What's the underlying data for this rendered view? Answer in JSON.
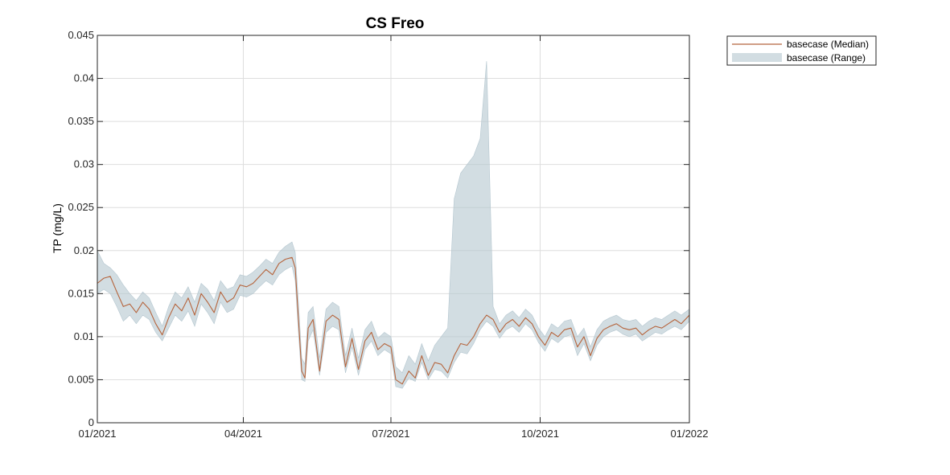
{
  "chart_data": {
    "type": "line",
    "title": "CS Freo",
    "xlabel": "",
    "ylabel": "TP (mg/L)",
    "xlim": [
      "2021-01-01",
      "2022-01-01"
    ],
    "ylim": [
      0,
      0.045
    ],
    "grid": true,
    "legend_position": "outside-top-right",
    "x_ticks": [
      {
        "date": "2021-01-01",
        "label": "01/2021"
      },
      {
        "date": "2021-04-01",
        "label": "04/2021"
      },
      {
        "date": "2021-07-01",
        "label": "07/2021"
      },
      {
        "date": "2021-10-01",
        "label": "10/2021"
      },
      {
        "date": "2022-01-01",
        "label": "01/2022"
      }
    ],
    "y_ticks": [
      {
        "value": 0,
        "label": "0"
      },
      {
        "value": 0.005,
        "label": "0.005"
      },
      {
        "value": 0.01,
        "label": "0.01"
      },
      {
        "value": 0.015,
        "label": "0.015"
      },
      {
        "value": 0.02,
        "label": "0.02"
      },
      {
        "value": 0.025,
        "label": "0.025"
      },
      {
        "value": 0.03,
        "label": "0.03"
      },
      {
        "value": 0.035,
        "label": "0.035"
      },
      {
        "value": 0.04,
        "label": "0.04"
      },
      {
        "value": 0.045,
        "label": "0.045"
      }
    ],
    "series": [
      {
        "name": "basecase (Median)",
        "kind": "line",
        "color": "#b5643c",
        "x": [
          "2021-01-01",
          "2021-01-05",
          "2021-01-09",
          "2021-01-13",
          "2021-01-17",
          "2021-01-21",
          "2021-01-25",
          "2021-01-29",
          "2021-02-02",
          "2021-02-06",
          "2021-02-10",
          "2021-02-14",
          "2021-02-18",
          "2021-02-22",
          "2021-02-26",
          "2021-03-02",
          "2021-03-06",
          "2021-03-10",
          "2021-03-14",
          "2021-03-18",
          "2021-03-22",
          "2021-03-26",
          "2021-03-30",
          "2021-04-03",
          "2021-04-07",
          "2021-04-11",
          "2021-04-15",
          "2021-04-19",
          "2021-04-23",
          "2021-04-27",
          "2021-05-01",
          "2021-05-03",
          "2021-05-05",
          "2021-05-07",
          "2021-05-09",
          "2021-05-11",
          "2021-05-14",
          "2021-05-18",
          "2021-05-22",
          "2021-05-26",
          "2021-05-30",
          "2021-06-03",
          "2021-06-07",
          "2021-06-11",
          "2021-06-15",
          "2021-06-19",
          "2021-06-23",
          "2021-06-27",
          "2021-07-01",
          "2021-07-04",
          "2021-07-08",
          "2021-07-12",
          "2021-07-16",
          "2021-07-20",
          "2021-07-24",
          "2021-07-28",
          "2021-08-01",
          "2021-08-05",
          "2021-08-09",
          "2021-08-13",
          "2021-08-17",
          "2021-08-21",
          "2021-08-25",
          "2021-08-29",
          "2021-09-02",
          "2021-09-06",
          "2021-09-10",
          "2021-09-14",
          "2021-09-18",
          "2021-09-22",
          "2021-09-26",
          "2021-09-30",
          "2021-10-04",
          "2021-10-08",
          "2021-10-12",
          "2021-10-16",
          "2021-10-20",
          "2021-10-24",
          "2021-10-28",
          "2021-11-01",
          "2021-11-05",
          "2021-11-09",
          "2021-11-13",
          "2021-11-17",
          "2021-11-21",
          "2021-11-25",
          "2021-11-29",
          "2021-12-03",
          "2021-12-07",
          "2021-12-11",
          "2021-12-15",
          "2021-12-19",
          "2021-12-23",
          "2021-12-27",
          "2022-01-01"
        ],
        "values": [
          0.0162,
          0.0168,
          0.017,
          0.0152,
          0.0135,
          0.0138,
          0.0128,
          0.014,
          0.0132,
          0.0115,
          0.0102,
          0.0122,
          0.0138,
          0.013,
          0.0145,
          0.0125,
          0.015,
          0.014,
          0.0128,
          0.0152,
          0.014,
          0.0145,
          0.016,
          0.0158,
          0.0162,
          0.017,
          0.0178,
          0.0172,
          0.0185,
          0.019,
          0.0192,
          0.018,
          0.012,
          0.006,
          0.0052,
          0.011,
          0.012,
          0.006,
          0.0118,
          0.0125,
          0.012,
          0.0065,
          0.0098,
          0.0062,
          0.0095,
          0.0105,
          0.0085,
          0.0092,
          0.0088,
          0.005,
          0.0045,
          0.006,
          0.0052,
          0.0078,
          0.0055,
          0.007,
          0.0068,
          0.0058,
          0.0078,
          0.0092,
          0.009,
          0.01,
          0.0115,
          0.0125,
          0.012,
          0.0105,
          0.0115,
          0.012,
          0.0112,
          0.0122,
          0.0115,
          0.01,
          0.009,
          0.0105,
          0.01,
          0.0108,
          0.011,
          0.0088,
          0.01,
          0.0078,
          0.0098,
          0.0108,
          0.0112,
          0.0115,
          0.011,
          0.0108,
          0.011,
          0.0102,
          0.0108,
          0.0112,
          0.011,
          0.0115,
          0.012,
          0.0115,
          0.0125
        ]
      },
      {
        "name": "basecase (Range)",
        "kind": "band",
        "color": "#b4c6cf",
        "x": [
          "2021-01-01",
          "2021-01-05",
          "2021-01-09",
          "2021-01-13",
          "2021-01-17",
          "2021-01-21",
          "2021-01-25",
          "2021-01-29",
          "2021-02-02",
          "2021-02-06",
          "2021-02-10",
          "2021-02-14",
          "2021-02-18",
          "2021-02-22",
          "2021-02-26",
          "2021-03-02",
          "2021-03-06",
          "2021-03-10",
          "2021-03-14",
          "2021-03-18",
          "2021-03-22",
          "2021-03-26",
          "2021-03-30",
          "2021-04-03",
          "2021-04-07",
          "2021-04-11",
          "2021-04-15",
          "2021-04-19",
          "2021-04-23",
          "2021-04-27",
          "2021-05-01",
          "2021-05-03",
          "2021-05-05",
          "2021-05-07",
          "2021-05-09",
          "2021-05-11",
          "2021-05-14",
          "2021-05-18",
          "2021-05-22",
          "2021-05-26",
          "2021-05-30",
          "2021-06-03",
          "2021-06-07",
          "2021-06-11",
          "2021-06-15",
          "2021-06-19",
          "2021-06-23",
          "2021-06-27",
          "2021-07-01",
          "2021-07-04",
          "2021-07-08",
          "2021-07-12",
          "2021-07-16",
          "2021-07-20",
          "2021-07-24",
          "2021-07-28",
          "2021-08-01",
          "2021-08-05",
          "2021-08-09",
          "2021-08-13",
          "2021-08-17",
          "2021-08-21",
          "2021-08-25",
          "2021-08-29",
          "2021-09-02",
          "2021-09-06",
          "2021-09-10",
          "2021-09-14",
          "2021-09-18",
          "2021-09-22",
          "2021-09-26",
          "2021-09-30",
          "2021-10-04",
          "2021-10-08",
          "2021-10-12",
          "2021-10-16",
          "2021-10-20",
          "2021-10-24",
          "2021-10-28",
          "2021-11-01",
          "2021-11-05",
          "2021-11-09",
          "2021-11-13",
          "2021-11-17",
          "2021-11-21",
          "2021-11-25",
          "2021-11-29",
          "2021-12-03",
          "2021-12-07",
          "2021-12-11",
          "2021-12-15",
          "2021-12-19",
          "2021-12-23",
          "2021-12-27",
          "2022-01-01"
        ],
        "lower": [
          0.015,
          0.0155,
          0.015,
          0.0135,
          0.0118,
          0.0125,
          0.0115,
          0.0125,
          0.012,
          0.0105,
          0.0095,
          0.011,
          0.0125,
          0.0118,
          0.013,
          0.0112,
          0.0138,
          0.0128,
          0.0115,
          0.014,
          0.0128,
          0.0132,
          0.0148,
          0.0146,
          0.015,
          0.0158,
          0.0165,
          0.016,
          0.0172,
          0.0178,
          0.0182,
          0.0165,
          0.0105,
          0.005,
          0.0048,
          0.0095,
          0.0108,
          0.0055,
          0.0105,
          0.0112,
          0.0108,
          0.0058,
          0.0088,
          0.0055,
          0.0085,
          0.0095,
          0.0078,
          0.0085,
          0.008,
          0.0042,
          0.004,
          0.0052,
          0.0048,
          0.007,
          0.005,
          0.0062,
          0.006,
          0.0052,
          0.007,
          0.0082,
          0.008,
          0.0092,
          0.0108,
          0.0118,
          0.0112,
          0.0098,
          0.0108,
          0.0112,
          0.0105,
          0.0115,
          0.0108,
          0.0093,
          0.0083,
          0.0098,
          0.0093,
          0.01,
          0.0102,
          0.0078,
          0.0092,
          0.0072,
          0.009,
          0.01,
          0.0105,
          0.0108,
          0.0103,
          0.01,
          0.0103,
          0.0095,
          0.01,
          0.0105,
          0.0103,
          0.0108,
          0.0112,
          0.0108,
          0.0118
        ],
        "upper": [
          0.02,
          0.0185,
          0.018,
          0.0172,
          0.016,
          0.015,
          0.0142,
          0.0152,
          0.0145,
          0.0128,
          0.0112,
          0.0135,
          0.0152,
          0.0145,
          0.0158,
          0.014,
          0.0162,
          0.0155,
          0.0142,
          0.0165,
          0.0155,
          0.0158,
          0.0172,
          0.017,
          0.0175,
          0.0182,
          0.019,
          0.0185,
          0.0198,
          0.0205,
          0.021,
          0.0198,
          0.014,
          0.0075,
          0.0068,
          0.0128,
          0.0135,
          0.0075,
          0.0132,
          0.014,
          0.0135,
          0.0078,
          0.011,
          0.0075,
          0.0108,
          0.0118,
          0.0098,
          0.0105,
          0.01,
          0.0065,
          0.0058,
          0.0078,
          0.0068,
          0.0092,
          0.0072,
          0.009,
          0.01,
          0.011,
          0.026,
          0.029,
          0.03,
          0.031,
          0.033,
          0.042,
          0.0135,
          0.0115,
          0.0125,
          0.013,
          0.0122,
          0.0132,
          0.0125,
          0.011,
          0.01,
          0.0115,
          0.011,
          0.0118,
          0.012,
          0.01,
          0.011,
          0.0088,
          0.0108,
          0.0118,
          0.0122,
          0.0125,
          0.012,
          0.0118,
          0.012,
          0.0112,
          0.0118,
          0.0122,
          0.012,
          0.0125,
          0.013,
          0.0125,
          0.0132
        ]
      }
    ]
  }
}
